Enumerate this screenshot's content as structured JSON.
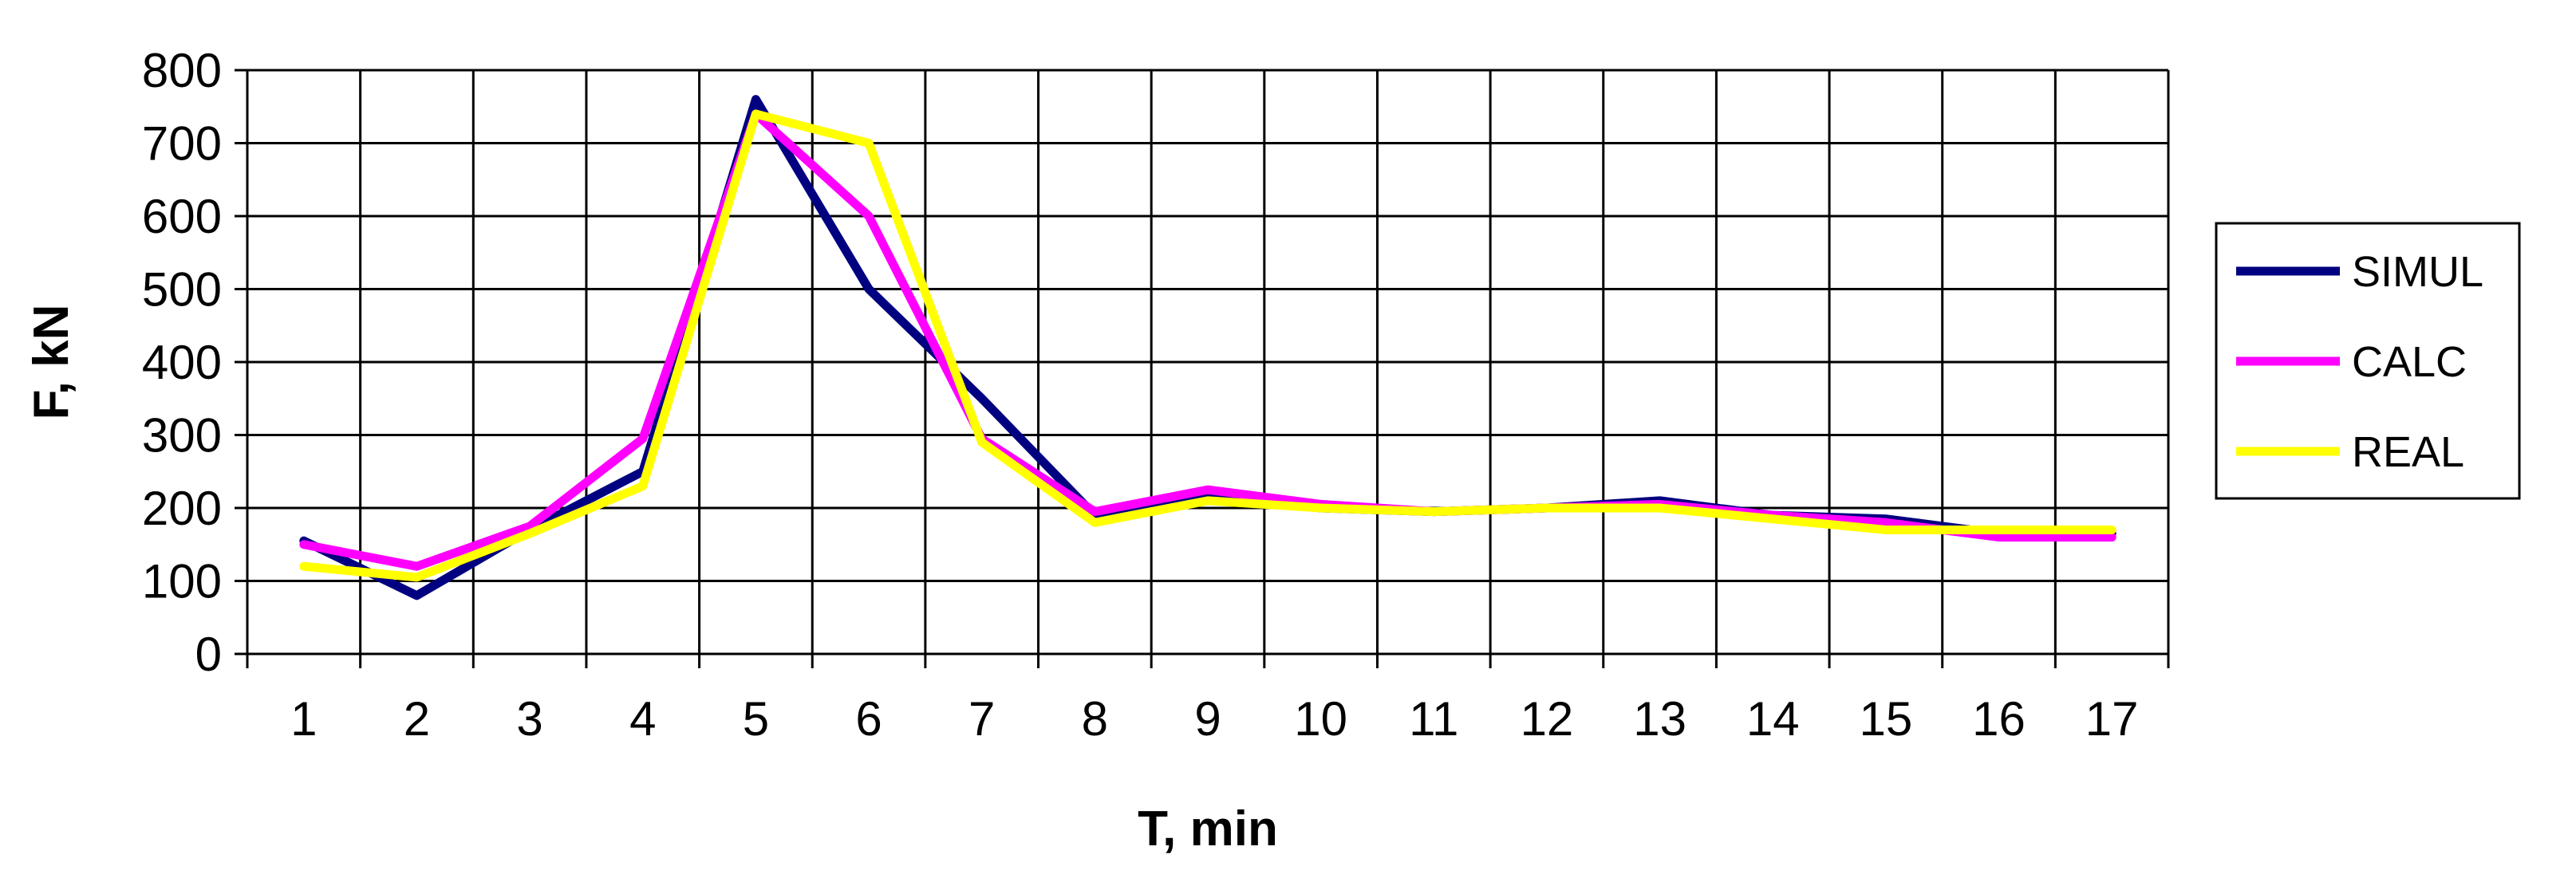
{
  "chart_data": {
    "type": "line",
    "title": "",
    "xlabel": "T, min",
    "ylabel": "F, kN",
    "categories": [
      "1",
      "2",
      "3",
      "4",
      "5",
      "6",
      "7",
      "8",
      "9",
      "10",
      "11",
      "12",
      "13",
      "14",
      "15",
      "16",
      "17"
    ],
    "ylim": [
      0,
      800
    ],
    "yticks": [
      0,
      100,
      200,
      300,
      400,
      500,
      600,
      700,
      800
    ],
    "grid": true,
    "legend_position": "right",
    "series": [
      {
        "name": "SIMUL",
        "color": "#000080",
        "values": [
          155,
          80,
          170,
          250,
          760,
          500,
          350,
          190,
          215,
          200,
          195,
          200,
          210,
          190,
          185,
          165,
          165
        ]
      },
      {
        "name": "CALC",
        "color": "#ff00ff",
        "values": [
          150,
          120,
          175,
          295,
          740,
          600,
          295,
          195,
          225,
          205,
          195,
          200,
          205,
          190,
          180,
          160,
          160
        ]
      },
      {
        "name": "REAL",
        "color": "#ffff00",
        "values": [
          120,
          105,
          165,
          230,
          740,
          700,
          290,
          180,
          210,
          200,
          195,
          200,
          200,
          185,
          170,
          170,
          170
        ]
      }
    ]
  }
}
